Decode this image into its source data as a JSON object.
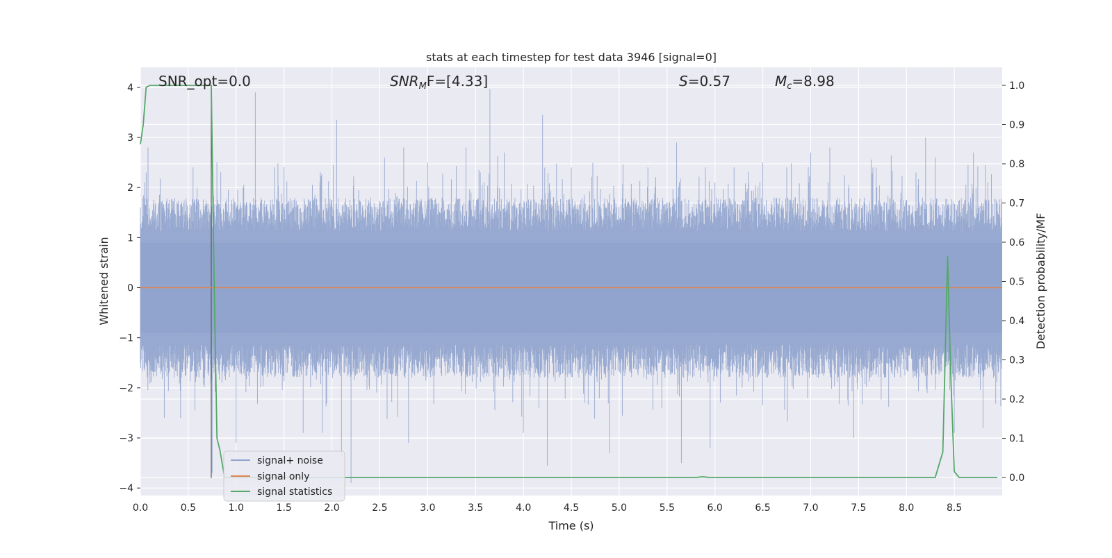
{
  "chart_data": {
    "type": "line",
    "title": "stats at each timestep for test data 3946 [signal=0]",
    "xlabel": "Time (s)",
    "ylabel": "Whitened strain",
    "y2label": "Detection probability/MF",
    "xlim": [
      0.0,
      9.0
    ],
    "ylim": [
      -4.15,
      4.4
    ],
    "y2lim": [
      -0.046,
      1.046
    ],
    "x_ticks": [
      "0.0",
      "0.5",
      "1.0",
      "1.5",
      "2.0",
      "2.5",
      "3.0",
      "3.5",
      "4.0",
      "4.5",
      "5.0",
      "5.5",
      "6.0",
      "6.5",
      "7.0",
      "7.5",
      "8.0",
      "8.5"
    ],
    "y_ticks": [
      "4",
      "3",
      "2",
      "1",
      "0",
      "−1",
      "−2",
      "−3",
      "−4"
    ],
    "y2_ticks": [
      "1.0",
      "0.9",
      "0.8",
      "0.7",
      "0.6",
      "0.5",
      "0.4",
      "0.3",
      "0.2",
      "0.1",
      "0.0"
    ],
    "grid": true,
    "legend_position": "lower-left",
    "annotations": [
      {
        "text": "SNR_opt=0.0",
        "x": 0.2,
        "y": 4.1
      },
      {
        "text": "SNR",
        "sub": "M",
        "rest": "F=[4.33]",
        "x": 2.6,
        "y": 4.1
      },
      {
        "text": "S",
        "rest": "=0.57",
        "x": 5.6,
        "y": 4.1
      },
      {
        "text": "M",
        "sub": "c",
        "rest": "=8.98",
        "x": 6.6,
        "y": 4.1
      }
    ],
    "vertical_marker_x": 0.74,
    "series": [
      {
        "name": "signal+ noise",
        "color": "#8fa3cd",
        "noise_envelope": {
          "typical_upper": 1.5,
          "typical_lower": -1.5,
          "peak_max": 3.97,
          "peak_min": -3.9
        },
        "peaks": [
          [
            0.06,
            2.3
          ],
          [
            0.08,
            2.8
          ],
          [
            0.1,
            -1.9
          ],
          [
            0.25,
            -2.6
          ],
          [
            0.42,
            -2.6
          ],
          [
            0.55,
            2.4
          ],
          [
            0.75,
            -3.7
          ],
          [
            1.0,
            -3.1
          ],
          [
            1.2,
            3.9
          ],
          [
            1.4,
            2.4
          ],
          [
            1.7,
            -2.9
          ],
          [
            1.9,
            -2.9
          ],
          [
            2.05,
            3.35
          ],
          [
            2.1,
            -3.4
          ],
          [
            2.2,
            -3.9
          ],
          [
            2.55,
            2.6
          ],
          [
            2.75,
            2.8
          ],
          [
            2.8,
            -3.1
          ],
          [
            3.0,
            2.5
          ],
          [
            3.4,
            2.8
          ],
          [
            3.55,
            2.3
          ],
          [
            3.65,
            3.97
          ],
          [
            3.8,
            2.7
          ],
          [
            4.0,
            -2.9
          ],
          [
            4.2,
            3.45
          ],
          [
            4.25,
            -3.55
          ],
          [
            4.5,
            2.4
          ],
          [
            4.9,
            -3.3
          ],
          [
            5.3,
            2.4
          ],
          [
            5.6,
            2.9
          ],
          [
            5.65,
            -3.5
          ],
          [
            5.9,
            2.4
          ],
          [
            5.95,
            -3.2
          ],
          [
            6.2,
            2.4
          ],
          [
            6.5,
            2.5
          ],
          [
            6.75,
            2.4
          ],
          [
            7.0,
            2.7
          ],
          [
            7.2,
            2.8
          ],
          [
            7.45,
            -3.0
          ],
          [
            7.65,
            2.4
          ],
          [
            8.1,
            2.3
          ],
          [
            8.2,
            3.0
          ],
          [
            8.3,
            2.6
          ],
          [
            8.5,
            -2.9
          ],
          [
            8.7,
            2.7
          ],
          [
            8.8,
            -2.8
          ]
        ]
      },
      {
        "name": "signal only",
        "color": "#dd8452",
        "x": [
          0.0,
          9.0
        ],
        "y": [
          0.0,
          0.0
        ]
      },
      {
        "name": "signal statistics",
        "color": "#55a868",
        "axis": "right",
        "x": [
          0.0,
          0.03,
          0.06,
          0.1,
          0.2,
          0.3,
          0.5,
          0.7,
          0.74,
          0.77,
          0.8,
          0.83,
          0.88,
          1.0,
          2.0,
          3.0,
          4.0,
          5.0,
          5.8,
          5.87,
          5.95,
          6.5,
          7.0,
          8.0,
          8.3,
          8.38,
          8.43,
          8.46,
          8.5,
          8.55,
          8.7,
          8.95
        ],
        "y": [
          0.85,
          0.9,
          0.995,
          1.0,
          1.0,
          1.0,
          1.0,
          1.0,
          1.0,
          0.5,
          0.1,
          0.07,
          0.0,
          0.0,
          0.0,
          0.0,
          0.0,
          0.0,
          0.0,
          0.002,
          0.0,
          0.0,
          0.0,
          0.0,
          0.0,
          0.065,
          0.565,
          0.28,
          0.015,
          0.0,
          0.0,
          0.0
        ]
      }
    ]
  }
}
